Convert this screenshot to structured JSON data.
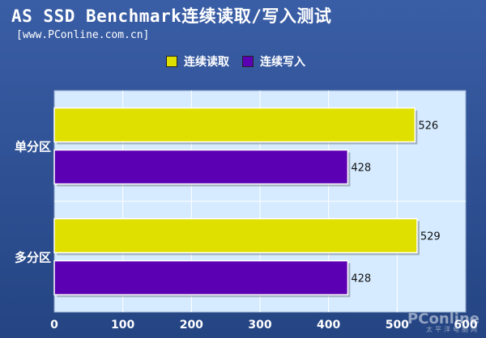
{
  "title": "AS SSD Benchmark连续读取/写入测试",
  "subtitle": "[www.PConline.com.cn]",
  "watermark": {
    "text": "PConline",
    "sub": "太平洋电脑网"
  },
  "colors": {
    "read": "#e0e000",
    "write": "#5c00b4",
    "plot_bg": "#d6ebff",
    "background": "#2d4d8c"
  },
  "chart_data": {
    "type": "bar",
    "orientation": "horizontal",
    "categories": [
      "单分区",
      "多分区"
    ],
    "series": [
      {
        "name": "连续读取",
        "values": [
          526,
          529
        ]
      },
      {
        "name": "连续写入",
        "values": [
          428,
          428
        ]
      }
    ],
    "xlim": [
      0,
      600
    ],
    "xticks": [
      0,
      100,
      200,
      300,
      400,
      500,
      600
    ],
    "data_labels": true,
    "legend_position": "top",
    "grid": "vertical"
  }
}
